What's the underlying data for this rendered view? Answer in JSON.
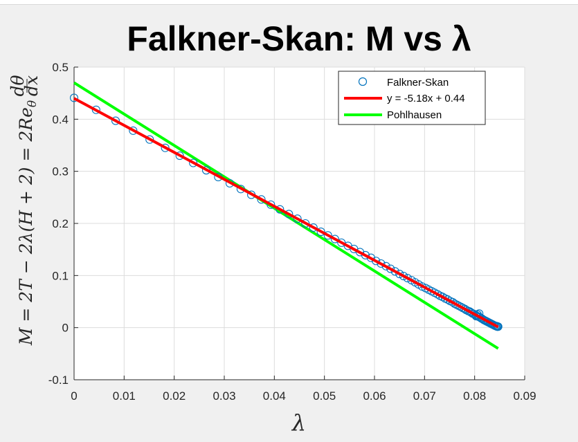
{
  "chart_data": {
    "type": "scatter",
    "title": "Falkner-Skan: M vs λ",
    "xlabel": "λ",
    "ylabel": "M = 2T − 2λ(H + 2) = 2Re",
    "ylabel_sub": "θ",
    "ylabel_frac_num": "dθ",
    "ylabel_frac_den": "dx",
    "xlim": [
      0,
      0.09
    ],
    "ylim": [
      -0.1,
      0.5
    ],
    "xticks": [
      0,
      0.01,
      0.02,
      0.03,
      0.04,
      0.05,
      0.06,
      0.07,
      0.08,
      0.09
    ],
    "xtick_labels": [
      "0",
      "0.01",
      "0.02",
      "0.03",
      "0.04",
      "0.05",
      "0.06",
      "0.07",
      "0.08",
      "0.09"
    ],
    "yticks": [
      -0.1,
      0,
      0.1,
      0.2,
      0.3,
      0.4,
      0.5
    ],
    "ytick_labels": [
      "-0.1",
      "0",
      "0.1",
      "0.2",
      "0.3",
      "0.4",
      "0.5"
    ],
    "grid": true,
    "legend_position": "top-right",
    "series": [
      {
        "name": "Falkner-Skan",
        "style": "markers",
        "color": "#0072bd",
        "x": [
          0,
          0.0044,
          0.0083,
          0.0118,
          0.0151,
          0.0182,
          0.0211,
          0.0238,
          0.0264,
          0.0288,
          0.0311,
          0.0333,
          0.0354,
          0.0374,
          0.0393,
          0.0411,
          0.0429,
          0.0446,
          0.0462,
          0.0478,
          0.0493,
          0.0507,
          0.0521,
          0.0534,
          0.0547,
          0.0559,
          0.0571,
          0.0582,
          0.0593,
          0.0603,
          0.0613,
          0.0623,
          0.0632,
          0.0641,
          0.065,
          0.0658,
          0.0666,
          0.0674,
          0.0681,
          0.0688,
          0.0695,
          0.0702,
          0.0708,
          0.0714,
          0.072,
          0.0726,
          0.0731,
          0.0736,
          0.0741,
          0.0746,
          0.0751,
          0.0756,
          0.076,
          0.0764,
          0.0768,
          0.0772,
          0.0776,
          0.078,
          0.0783,
          0.0787,
          0.079,
          0.0793,
          0.0796,
          0.0799,
          0.0802,
          0.0805,
          0.0808,
          0.081,
          0.0813,
          0.0815,
          0.0818,
          0.082,
          0.0822,
          0.0824,
          0.0826,
          0.0828,
          0.083,
          0.0832,
          0.0834,
          0.0836,
          0.0838,
          0.084,
          0.0842,
          0.0844,
          0.0845,
          0.0846,
          0.0847,
          0.0803,
          0.0806,
          0.0809
        ],
        "y": [
          0.441,
          0.418,
          0.397,
          0.378,
          0.361,
          0.345,
          0.33,
          0.316,
          0.302,
          0.289,
          0.277,
          0.266,
          0.255,
          0.246,
          0.236,
          0.227,
          0.218,
          0.209,
          0.2,
          0.192,
          0.184,
          0.177,
          0.17,
          0.163,
          0.157,
          0.151,
          0.145,
          0.139,
          0.134,
          0.128,
          0.123,
          0.118,
          0.113,
          0.108,
          0.103,
          0.099,
          0.095,
          0.091,
          0.087,
          0.083,
          0.079,
          0.076,
          0.073,
          0.07,
          0.067,
          0.064,
          0.061,
          0.059,
          0.056,
          0.054,
          0.051,
          0.049,
          0.046,
          0.044,
          0.042,
          0.04,
          0.038,
          0.036,
          0.034,
          0.032,
          0.031,
          0.029,
          0.027,
          0.026,
          0.024,
          0.022,
          0.021,
          0.02,
          0.018,
          0.017,
          0.015,
          0.014,
          0.013,
          0.012,
          0.011,
          0.01,
          0.009,
          0.008,
          0.007,
          0.006,
          0.005,
          0.004,
          0.003,
          0.003,
          0.002,
          0.002,
          0.002,
          0.022,
          0.025,
          0.027
        ]
      },
      {
        "name": "y = -5.18x + 0.44",
        "style": "line",
        "color": "#ff0000",
        "x": [
          0,
          0.0847
        ],
        "y": [
          0.44,
          0.0012
        ]
      },
      {
        "name": "Pohlhausen",
        "style": "line",
        "color": "#00ff00",
        "x": [
          0,
          0.0847
        ],
        "y": [
          0.47,
          -0.04
        ]
      }
    ]
  }
}
